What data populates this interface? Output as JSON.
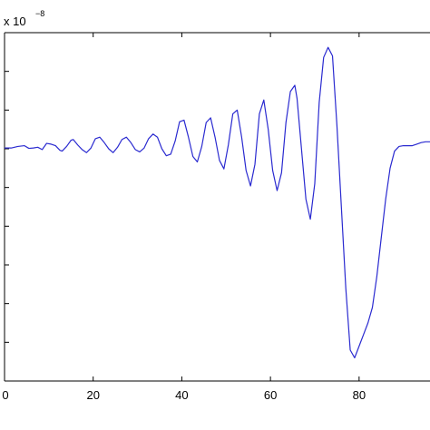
{
  "chart_data": {
    "type": "line",
    "title": "",
    "xlabel": "",
    "ylabel": "",
    "y_exponent_label": {
      "base": "x 10",
      "power": "−8"
    },
    "xlim": [
      0,
      96
    ],
    "x_ticks": [
      0,
      20,
      40,
      60,
      80
    ],
    "x_tick_labels": [
      "0",
      "20",
      "40",
      "60",
      "80"
    ],
    "grid": false,
    "legend": "none",
    "series": [
      {
        "color": "#2a2ad0",
        "points": [
          [
            0,
            0.02
          ],
          [
            1.5,
            0.02
          ],
          [
            3,
            0.06
          ],
          [
            4.5,
            0.08
          ],
          [
            5.5,
            0.01
          ],
          [
            6.5,
            0.02
          ],
          [
            7.5,
            0.04
          ],
          [
            8.5,
            -0.02
          ],
          [
            9.5,
            0.14
          ],
          [
            10.5,
            0.12
          ],
          [
            11.5,
            0.08
          ],
          [
            12.5,
            -0.04
          ],
          [
            13,
            -0.06
          ],
          [
            14,
            0.06
          ],
          [
            15,
            0.22
          ],
          [
            15.5,
            0.24
          ],
          [
            16.5,
            0.1
          ],
          [
            17.5,
            -0.02
          ],
          [
            18.5,
            -0.1
          ],
          [
            19.5,
            0.02
          ],
          [
            20.5,
            0.26
          ],
          [
            21.5,
            0.3
          ],
          [
            22.5,
            0.16
          ],
          [
            23.5,
            0.0
          ],
          [
            24.5,
            -0.1
          ],
          [
            25.5,
            0.04
          ],
          [
            26.5,
            0.24
          ],
          [
            27.5,
            0.3
          ],
          [
            28.5,
            0.16
          ],
          [
            29.5,
            -0.02
          ],
          [
            30.5,
            -0.08
          ],
          [
            31.5,
            0.02
          ],
          [
            32.5,
            0.26
          ],
          [
            33.5,
            0.38
          ],
          [
            34.5,
            0.3
          ],
          [
            35.5,
            0.0
          ],
          [
            36.5,
            -0.18
          ],
          [
            37.5,
            -0.14
          ],
          [
            38.5,
            0.2
          ],
          [
            39.5,
            0.7
          ],
          [
            40.5,
            0.74
          ],
          [
            41.5,
            0.3
          ],
          [
            42.5,
            -0.2
          ],
          [
            43.5,
            -0.34
          ],
          [
            44.5,
            0.06
          ],
          [
            45.5,
            0.68
          ],
          [
            46.5,
            0.8
          ],
          [
            47.5,
            0.3
          ],
          [
            48.5,
            -0.3
          ],
          [
            49.5,
            -0.52
          ],
          [
            50.5,
            0.1
          ],
          [
            51.5,
            0.9
          ],
          [
            52.5,
            1.0
          ],
          [
            53.5,
            0.3
          ],
          [
            54.5,
            -0.56
          ],
          [
            55.5,
            -0.96
          ],
          [
            56.5,
            -0.4
          ],
          [
            57.5,
            0.9
          ],
          [
            58.5,
            1.26
          ],
          [
            59.5,
            0.5
          ],
          [
            60.5,
            -0.56
          ],
          [
            61.5,
            -1.08
          ],
          [
            62.5,
            -0.62
          ],
          [
            63.5,
            0.68
          ],
          [
            64.5,
            1.48
          ],
          [
            65.5,
            1.64
          ],
          [
            66,
            1.3
          ],
          [
            67,
            0.0
          ],
          [
            68,
            -1.3
          ],
          [
            69,
            -1.82
          ],
          [
            70,
            -0.9
          ],
          [
            71,
            1.2
          ],
          [
            72,
            2.36
          ],
          [
            73,
            2.62
          ],
          [
            74,
            2.4
          ],
          [
            75,
            0.6
          ],
          [
            76,
            -1.5
          ],
          [
            77,
            -3.6
          ],
          [
            78,
            -5.2
          ],
          [
            79,
            -5.4
          ],
          [
            80,
            -5.1
          ],
          [
            81,
            -4.8
          ],
          [
            82,
            -4.5
          ],
          [
            83,
            -4.1
          ],
          [
            84,
            -3.3
          ],
          [
            85,
            -2.3
          ],
          [
            86,
            -1.3
          ],
          [
            87,
            -0.5
          ],
          [
            88,
            -0.06
          ],
          [
            89,
            0.06
          ],
          [
            90,
            0.08
          ],
          [
            91,
            0.08
          ],
          [
            92,
            0.08
          ],
          [
            93,
            0.12
          ],
          [
            94,
            0.16
          ],
          [
            95,
            0.18
          ],
          [
            96,
            0.18
          ]
        ]
      }
    ]
  }
}
